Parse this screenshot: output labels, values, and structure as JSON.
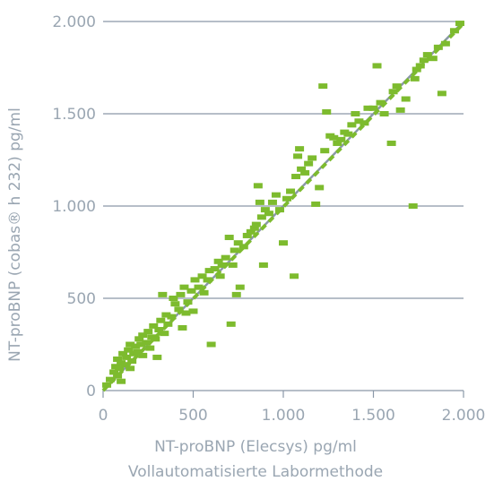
{
  "chart_data": {
    "type": "scatter",
    "xlabel": "NT-proBNP (Elecsys) pg/ml",
    "xlabel_sub": "Vollautomatisierte Labormethode",
    "ylabel": "NT-proBNP (cobas® h 232) pg/ml",
    "xlim": [
      0,
      2000
    ],
    "ylim": [
      0,
      2000
    ],
    "x_ticks": [
      0,
      500,
      1000,
      1500,
      2000
    ],
    "y_ticks": [
      0,
      500,
      1000,
      1500,
      2000
    ],
    "x_tick_labels": [
      "0",
      "500",
      "1.000",
      "1.500",
      "2.000"
    ],
    "y_tick_labels": [
      "0",
      "500",
      "1.000",
      "1.500",
      "2.000"
    ],
    "grid": "horizontal",
    "colors": {
      "points": "#7dbb2e",
      "fit_line": "#7dbb2e",
      "identity_line": "#8a98a8",
      "grid": "#8a98a8",
      "text": "#9aa6b2"
    },
    "lines": [
      {
        "kind": "identity",
        "x": [
          0,
          2000
        ],
        "y": [
          0,
          2000
        ]
      },
      {
        "kind": "regression",
        "x": [
          0,
          2000
        ],
        "y": [
          0,
          1990
        ]
      }
    ],
    "points": [
      [
        20,
        30
      ],
      [
        40,
        60
      ],
      [
        60,
        100
      ],
      [
        70,
        130
      ],
      [
        80,
        80
      ],
      [
        80,
        170
      ],
      [
        90,
        120
      ],
      [
        100,
        150
      ],
      [
        100,
        50
      ],
      [
        110,
        200
      ],
      [
        120,
        140
      ],
      [
        130,
        180
      ],
      [
        140,
        220
      ],
      [
        150,
        120
      ],
      [
        150,
        250
      ],
      [
        160,
        160
      ],
      [
        170,
        200
      ],
      [
        180,
        240
      ],
      [
        190,
        210
      ],
      [
        200,
        280
      ],
      [
        210,
        250
      ],
      [
        220,
        300
      ],
      [
        220,
        190
      ],
      [
        240,
        260
      ],
      [
        250,
        320
      ],
      [
        260,
        230
      ],
      [
        270,
        290
      ],
      [
        280,
        350
      ],
      [
        290,
        280
      ],
      [
        300,
        180
      ],
      [
        310,
        330
      ],
      [
        320,
        380
      ],
      [
        330,
        520
      ],
      [
        340,
        310
      ],
      [
        350,
        410
      ],
      [
        360,
        360
      ],
      [
        380,
        400
      ],
      [
        390,
        500
      ],
      [
        400,
        470
      ],
      [
        420,
        440
      ],
      [
        430,
        520
      ],
      [
        440,
        340
      ],
      [
        450,
        560
      ],
      [
        460,
        420
      ],
      [
        470,
        480
      ],
      [
        490,
        540
      ],
      [
        500,
        430
      ],
      [
        510,
        600
      ],
      [
        530,
        560
      ],
      [
        550,
        620
      ],
      [
        560,
        530
      ],
      [
        580,
        600
      ],
      [
        590,
        650
      ],
      [
        600,
        250
      ],
      [
        620,
        660
      ],
      [
        640,
        700
      ],
      [
        650,
        620
      ],
      [
        660,
        680
      ],
      [
        680,
        720
      ],
      [
        700,
        830
      ],
      [
        710,
        360
      ],
      [
        720,
        680
      ],
      [
        730,
        760
      ],
      [
        740,
        520
      ],
      [
        750,
        800
      ],
      [
        760,
        560
      ],
      [
        780,
        780
      ],
      [
        800,
        840
      ],
      [
        820,
        860
      ],
      [
        840,
        880
      ],
      [
        850,
        900
      ],
      [
        860,
        1110
      ],
      [
        870,
        1020
      ],
      [
        880,
        940
      ],
      [
        890,
        680
      ],
      [
        900,
        980
      ],
      [
        920,
        960
      ],
      [
        940,
        1020
      ],
      [
        960,
        1060
      ],
      [
        980,
        980
      ],
      [
        1000,
        800
      ],
      [
        1020,
        1040
      ],
      [
        1040,
        1080
      ],
      [
        1060,
        620
      ],
      [
        1070,
        1160
      ],
      [
        1080,
        1270
      ],
      [
        1090,
        1310
      ],
      [
        1100,
        1200
      ],
      [
        1120,
        1180
      ],
      [
        1140,
        1230
      ],
      [
        1160,
        1260
      ],
      [
        1180,
        1010
      ],
      [
        1200,
        1100
      ],
      [
        1220,
        1650
      ],
      [
        1230,
        1300
      ],
      [
        1240,
        1510
      ],
      [
        1260,
        1380
      ],
      [
        1280,
        1370
      ],
      [
        1300,
        1340
      ],
      [
        1320,
        1360
      ],
      [
        1340,
        1400
      ],
      [
        1360,
        1390
      ],
      [
        1380,
        1440
      ],
      [
        1400,
        1500
      ],
      [
        1420,
        1460
      ],
      [
        1450,
        1450
      ],
      [
        1470,
        1530
      ],
      [
        1500,
        1530
      ],
      [
        1520,
        1760
      ],
      [
        1540,
        1560
      ],
      [
        1560,
        1500
      ],
      [
        1600,
        1340
      ],
      [
        1610,
        1620
      ],
      [
        1630,
        1650
      ],
      [
        1650,
        1520
      ],
      [
        1680,
        1580
      ],
      [
        1720,
        1000
      ],
      [
        1730,
        1690
      ],
      [
        1740,
        1740
      ],
      [
        1760,
        1760
      ],
      [
        1780,
        1790
      ],
      [
        1800,
        1820
      ],
      [
        1830,
        1800
      ],
      [
        1860,
        1860
      ],
      [
        1880,
        1610
      ],
      [
        1900,
        1880
      ],
      [
        1950,
        1950
      ],
      [
        1980,
        1990
      ]
    ]
  }
}
